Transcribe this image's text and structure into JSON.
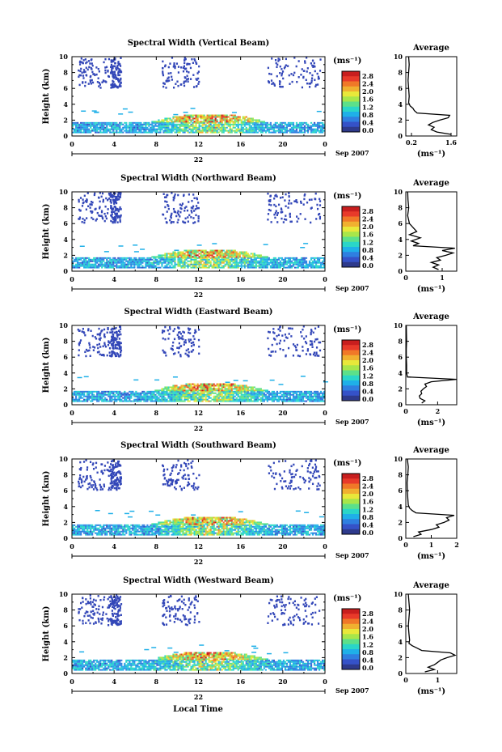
{
  "colors": {
    "colorbar": [
      "#2e3a8c",
      "#3552c8",
      "#2f7fe0",
      "#1fb0e8",
      "#2ad6c8",
      "#5ce08a",
      "#a8e64a",
      "#e8e83a",
      "#f0b030",
      "#f07828",
      "#e83a2a",
      "#c81e1e"
    ],
    "echo_blue": "#3347b8"
  },
  "figure": {
    "bottom_label": "Local Time",
    "date_label": "Sep 2007",
    "day_label": "22",
    "ylabel": "Height (km)",
    "avg_title": "Average",
    "unit_label": "(ms⁻¹)"
  },
  "chart_data": [
    {
      "type": "heatmap",
      "title": "Spectral Width (Vertical Beam)",
      "x_ticks": [
        "0",
        "4",
        "8",
        "12",
        "16",
        "20",
        "0"
      ],
      "y_ticks": [
        "0",
        "2",
        "4",
        "6",
        "8",
        "10"
      ],
      "xlim": [
        0,
        24
      ],
      "ylim": [
        0,
        10
      ],
      "colorbar_ticks": [
        "2.8",
        "2.4",
        "2.0",
        "1.6",
        "1.2",
        "0.8",
        "0.4",
        "0.0"
      ],
      "colorbar_range": [
        0.0,
        2.8
      ],
      "profile": {
        "title": "Average",
        "xlabel": "(ms⁻¹)",
        "x_ticks": [
          "0.2",
          "1.6"
        ],
        "xlim": [
          0.0,
          1.8
        ],
        "heights": [
          0.2,
          0.5,
          0.8,
          1.1,
          1.4,
          1.7,
          2.0,
          2.3,
          2.6,
          2.9,
          3.2,
          3.5,
          3.8,
          4.2,
          5,
          6,
          7,
          8,
          9,
          10
        ],
        "values": [
          1.6,
          1.1,
          0.9,
          1.0,
          0.8,
          0.95,
          1.2,
          1.5,
          1.55,
          0.4,
          0.3,
          0.25,
          0.15,
          0.1,
          0.12,
          0.1,
          0.08,
          0.1,
          0.12,
          0.1
        ]
      }
    },
    {
      "type": "heatmap",
      "title": "Spectral Width (Northward Beam)",
      "x_ticks": [
        "0",
        "4",
        "8",
        "12",
        "16",
        "20",
        "0"
      ],
      "y_ticks": [
        "0",
        "2",
        "4",
        "6",
        "8",
        "10"
      ],
      "xlim": [
        0,
        24
      ],
      "ylim": [
        0,
        10
      ],
      "colorbar_ticks": [
        "2.8",
        "2.4",
        "2.0",
        "1.6",
        "1.2",
        "0.8",
        "0.4",
        "0.0"
      ],
      "colorbar_range": [
        0.0,
        2.8
      ],
      "profile": {
        "title": "Average",
        "xlabel": "(ms⁻¹)",
        "x_ticks": [
          "0",
          "1"
        ],
        "xlim": [
          0.0,
          1.4
        ],
        "heights": [
          0.2,
          0.5,
          0.8,
          1.1,
          1.4,
          1.7,
          2.0,
          2.3,
          2.6,
          2.9,
          3.2,
          3.5,
          3.8,
          4.2,
          4.6,
          5,
          6,
          7,
          8,
          9,
          10
        ],
        "values": [
          0.9,
          0.75,
          0.9,
          0.7,
          0.95,
          0.85,
          1.1,
          1.3,
          1.0,
          1.35,
          0.2,
          0.35,
          0.15,
          0.4,
          0.1,
          0.3,
          0.1,
          0.05,
          0.08,
          0.06,
          0.05
        ]
      }
    },
    {
      "type": "heatmap",
      "title": "Spectral Width (Eastward Beam)",
      "x_ticks": [
        "0",
        "4",
        "8",
        "12",
        "16",
        "20",
        "0"
      ],
      "y_ticks": [
        "0",
        "2",
        "4",
        "6",
        "8",
        "10"
      ],
      "xlim": [
        0,
        24
      ],
      "ylim": [
        0,
        10
      ],
      "colorbar_ticks": [
        "2.8",
        "2.4",
        "2.0",
        "1.6",
        "1.2",
        "0.8",
        "0.4",
        "0.0"
      ],
      "colorbar_range": [
        0.0,
        2.8
      ],
      "profile": {
        "title": "Average",
        "xlabel": "(ms⁻¹)",
        "x_ticks": [
          "0",
          "2"
        ],
        "xlim": [
          0.0,
          3.2
        ],
        "heights": [
          0.2,
          0.5,
          0.8,
          1.1,
          1.4,
          1.7,
          2.0,
          2.3,
          2.6,
          2.9,
          3.2,
          3.5,
          4,
          5,
          6,
          7,
          8,
          9,
          10
        ],
        "values": [
          1.0,
          1.2,
          0.9,
          0.85,
          1.0,
          0.95,
          1.1,
          1.3,
          1.2,
          1.6,
          3.2,
          0.1,
          0.05,
          0.05,
          0.03,
          0.03,
          0.05,
          0.04,
          0.03
        ]
      }
    },
    {
      "type": "heatmap",
      "title": "Spectral Width (Southward Beam)",
      "x_ticks": [
        "0",
        "4",
        "8",
        "12",
        "16",
        "20",
        "0"
      ],
      "y_ticks": [
        "0",
        "2",
        "4",
        "6",
        "8",
        "10"
      ],
      "xlim": [
        0,
        24
      ],
      "ylim": [
        0,
        10
      ],
      "colorbar_ticks": [
        "2.8",
        "2.4",
        "2.0",
        "1.6",
        "1.2",
        "0.8",
        "0.4",
        "0.0"
      ],
      "colorbar_range": [
        0.0,
        2.8
      ],
      "profile": {
        "title": "Average",
        "xlabel": "(ms⁻¹)",
        "x_ticks": [
          "0",
          "1",
          "2"
        ],
        "xlim": [
          0.0,
          2.0
        ],
        "heights": [
          0.2,
          0.5,
          0.8,
          1.1,
          1.4,
          1.7,
          2.0,
          2.3,
          2.6,
          2.9,
          3.2,
          3.5,
          3.8,
          4.2,
          5,
          6,
          7,
          8,
          9,
          10
        ],
        "values": [
          0.3,
          0.6,
          0.5,
          1.0,
          1.3,
          1.2,
          1.5,
          1.7,
          1.6,
          1.9,
          0.4,
          0.25,
          0.15,
          0.1,
          0.08,
          0.06,
          0.05,
          0.08,
          0.1,
          0.06
        ]
      }
    },
    {
      "type": "heatmap",
      "title": "Spectral Width (Westward Beam)",
      "x_ticks": [
        "0",
        "4",
        "8",
        "12",
        "16",
        "20",
        "0"
      ],
      "y_ticks": [
        "0",
        "2",
        "4",
        "6",
        "8",
        "10"
      ],
      "xlim": [
        0,
        24
      ],
      "ylim": [
        0,
        10
      ],
      "colorbar_ticks": [
        "2.8",
        "2.4",
        "2.0",
        "1.6",
        "1.2",
        "0.8",
        "0.4",
        "0.0"
      ],
      "colorbar_range": [
        0.0,
        2.8
      ],
      "profile": {
        "title": "Average",
        "xlabel": "(ms⁻¹)",
        "x_ticks": [
          "0",
          "1"
        ],
        "xlim": [
          0.0,
          1.6
        ],
        "heights": [
          0.2,
          0.5,
          0.8,
          1.1,
          1.4,
          1.7,
          2.0,
          2.3,
          2.6,
          2.9,
          3.2,
          3.5,
          3.8,
          4.2,
          5,
          6,
          7,
          8,
          9,
          10
        ],
        "values": [
          0.6,
          0.9,
          0.7,
          0.9,
          1.0,
          1.1,
          1.3,
          1.55,
          1.4,
          0.5,
          0.35,
          0.2,
          0.1,
          0.12,
          0.1,
          0.08,
          0.1,
          0.12,
          0.1,
          0.08
        ]
      }
    }
  ]
}
